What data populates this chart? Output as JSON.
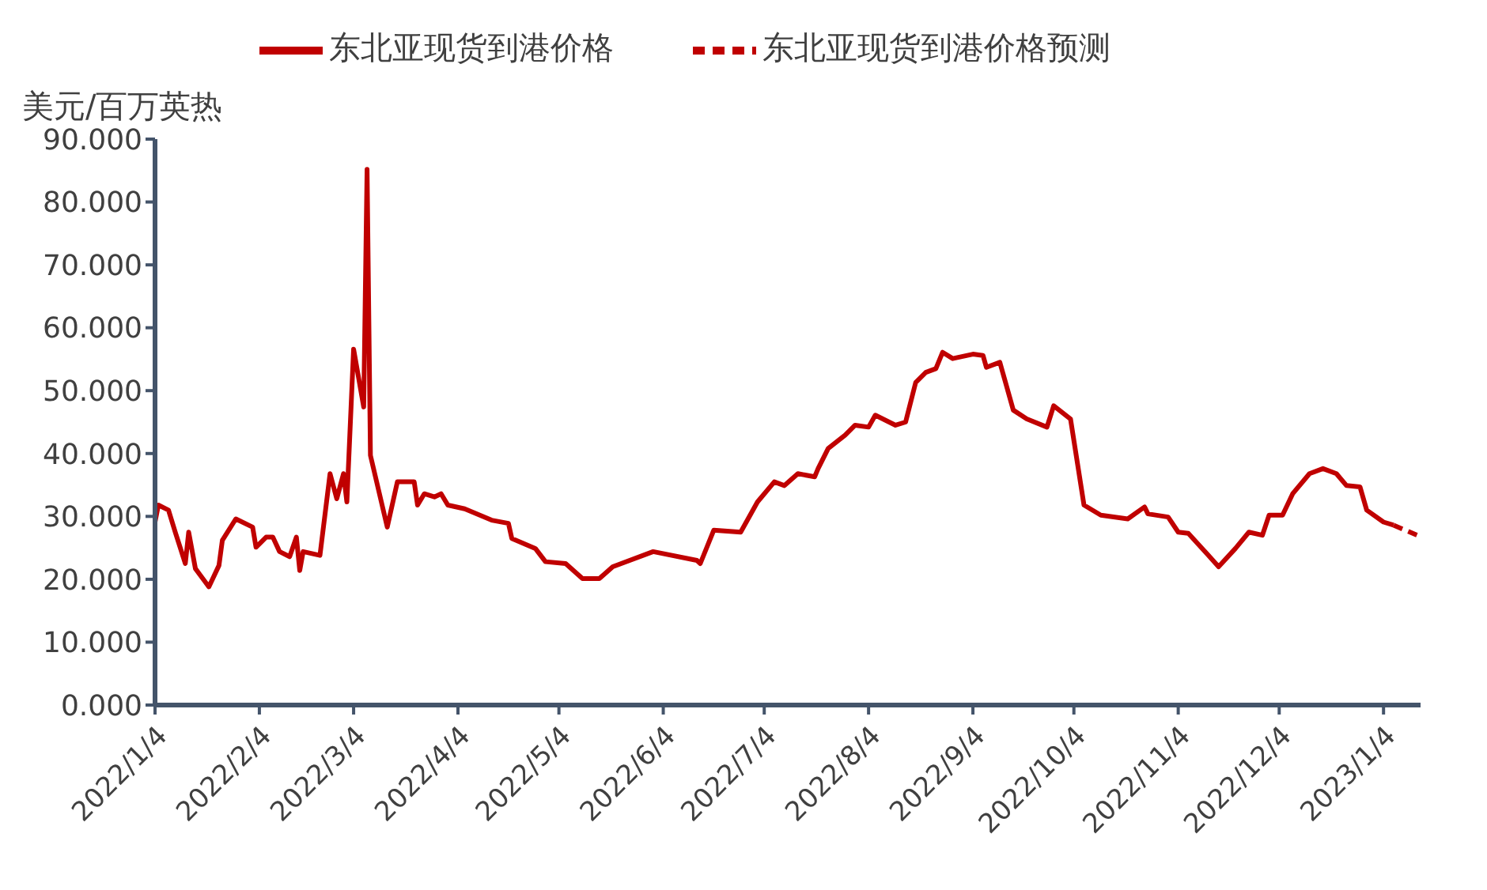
{
  "chart_data": {
    "type": "line",
    "ylabel": "美元/百万英热",
    "xlim": [
      "2022-01-04",
      "2023-01-15"
    ],
    "ylim": [
      0,
      90
    ],
    "xticks": [
      {
        "value": "2022-01-04",
        "label": "2022/1/4"
      },
      {
        "value": "2022-02-04",
        "label": "2022/2/4"
      },
      {
        "value": "2022-03-04",
        "label": "2022/3/4"
      },
      {
        "value": "2022-04-04",
        "label": "2022/4/4"
      },
      {
        "value": "2022-05-04",
        "label": "2022/5/4"
      },
      {
        "value": "2022-06-04",
        "label": "2022/6/4"
      },
      {
        "value": "2022-07-04",
        "label": "2022/7/4"
      },
      {
        "value": "2022-08-04",
        "label": "2022/8/4"
      },
      {
        "value": "2022-09-04",
        "label": "2022/9/4"
      },
      {
        "value": "2022-10-04",
        "label": "2022/10/4"
      },
      {
        "value": "2022-11-04",
        "label": "2022/11/4"
      },
      {
        "value": "2022-12-04",
        "label": "2022/12/4"
      },
      {
        "value": "2023-01-04",
        "label": "2023/1/4"
      }
    ],
    "yticks": [
      {
        "value": 0,
        "label": "0.000"
      },
      {
        "value": 10,
        "label": "10.000"
      },
      {
        "value": 20,
        "label": "20.000"
      },
      {
        "value": 30,
        "label": "30.000"
      },
      {
        "value": 40,
        "label": "40.000"
      },
      {
        "value": 50,
        "label": "50.000"
      },
      {
        "value": 60,
        "label": "60.000"
      },
      {
        "value": 70,
        "label": "70.000"
      },
      {
        "value": 80,
        "label": "80.000"
      },
      {
        "value": 90,
        "label": "90.000"
      }
    ],
    "legend": "top",
    "grid": false,
    "marker": "none",
    "series": [
      {
        "name": "东北亚现货到港价格",
        "color": "#c00000",
        "line_style": "solid",
        "x": [
          "2022-01-04",
          "2022-01-05",
          "2022-01-08",
          "2022-01-10",
          "2022-01-13",
          "2022-01-14",
          "2022-01-16",
          "2022-01-20",
          "2022-01-23",
          "2022-01-24",
          "2022-01-28",
          "2022-02-02",
          "2022-02-03",
          "2022-02-06",
          "2022-02-08",
          "2022-02-10",
          "2022-02-13",
          "2022-02-15",
          "2022-02-16",
          "2022-02-17",
          "2022-02-22",
          "2022-02-25",
          "2022-02-27",
          "2022-03-01",
          "2022-03-02",
          "2022-03-04",
          "2022-03-07",
          "2022-03-08",
          "2022-03-09",
          "2022-03-14",
          "2022-03-17",
          "2022-03-22",
          "2022-03-23",
          "2022-03-25",
          "2022-03-28",
          "2022-03-30",
          "2022-04-01",
          "2022-04-06",
          "2022-04-14",
          "2022-04-19",
          "2022-04-20",
          "2022-04-27",
          "2022-04-30",
          "2022-05-06",
          "2022-05-11",
          "2022-05-16",
          "2022-05-20",
          "2022-06-01",
          "2022-06-14",
          "2022-06-15",
          "2022-06-19",
          "2022-06-27",
          "2022-07-02",
          "2022-07-07",
          "2022-07-10",
          "2022-07-14",
          "2022-07-19",
          "2022-07-20",
          "2022-07-23",
          "2022-07-28",
          "2022-07-31",
          "2022-08-04",
          "2022-08-06",
          "2022-08-12",
          "2022-08-15",
          "2022-08-18",
          "2022-08-21",
          "2022-08-24",
          "2022-08-26",
          "2022-08-29",
          "2022-09-04",
          "2022-09-07",
          "2022-09-08",
          "2022-09-12",
          "2022-09-16",
          "2022-09-20",
          "2022-09-26",
          "2022-09-28",
          "2022-10-03",
          "2022-10-07",
          "2022-10-12",
          "2022-10-20",
          "2022-10-25",
          "2022-10-26",
          "2022-11-01",
          "2022-11-04",
          "2022-11-07",
          "2022-11-13",
          "2022-11-16",
          "2022-11-21",
          "2022-11-25",
          "2022-11-29",
          "2022-12-01",
          "2022-12-05",
          "2022-12-08",
          "2022-12-13",
          "2022-12-17",
          "2022-12-21",
          "2022-12-24",
          "2022-12-28",
          "2022-12-30",
          "2023-01-04",
          "2023-01-07"
        ],
        "values": [
          29.1,
          31.8,
          31.0,
          27.5,
          22.5,
          27.5,
          21.7,
          18.8,
          22.2,
          26.2,
          29.6,
          28.3,
          25.1,
          26.7,
          26.7,
          24.4,
          23.6,
          26.7,
          21.4,
          24.4,
          23.8,
          36.8,
          32.8,
          36.8,
          32.3,
          56.6,
          47.4,
          85.2,
          39.7,
          28.3,
          35.5,
          35.5,
          31.8,
          33.6,
          33.1,
          33.6,
          31.8,
          31.2,
          29.4,
          28.9,
          26.5,
          24.9,
          22.8,
          22.5,
          20.1,
          20.1,
          22.0,
          24.4,
          23.0,
          22.5,
          27.8,
          27.5,
          32.3,
          35.5,
          34.9,
          36.8,
          36.3,
          37.6,
          40.8,
          42.9,
          44.5,
          44.2,
          46.1,
          44.5,
          45.0,
          51.3,
          52.9,
          53.5,
          56.1,
          55.1,
          55.8,
          55.6,
          53.7,
          54.5,
          46.9,
          45.5,
          44.2,
          47.6,
          45.5,
          31.8,
          30.2,
          29.6,
          31.5,
          30.4,
          29.9,
          27.5,
          27.3,
          23.8,
          22.0,
          24.9,
          27.5,
          27.0,
          30.2,
          30.2,
          33.6,
          36.8,
          37.6,
          36.8,
          34.9,
          34.7,
          31.0,
          29.1,
          28.6
        ]
      },
      {
        "name": "东北亚现货到港价格预测",
        "color": "#c00000",
        "line_style": "dashed",
        "x": [
          "2023-01-07",
          "2023-01-14"
        ],
        "values": [
          28.6,
          27.0
        ]
      }
    ]
  }
}
